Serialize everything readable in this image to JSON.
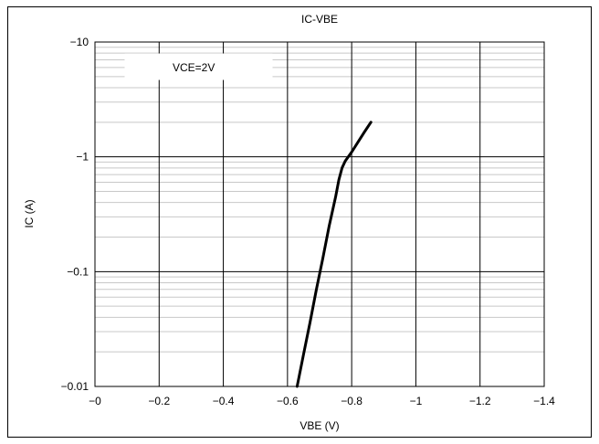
{
  "chart_data": {
    "type": "line",
    "title": "IC-VBE",
    "xlabel": "VBE (V)",
    "ylabel": "IC (A)",
    "xlim": [
      0,
      -1.4
    ],
    "ylim": [
      -0.01,
      -10
    ],
    "yscale": "log",
    "grid": true,
    "x_ticks": [
      "−0",
      "−0.2",
      "−0.4",
      "−0.6",
      "−0.8",
      "−1",
      "−1.2",
      "−1.4"
    ],
    "y_ticks": [
      "−0.01",
      "−0.1",
      "−1",
      "−10"
    ],
    "legend": {
      "text": "VCE=2V",
      "placement": "top-left"
    },
    "series": [
      {
        "x": [
          -0.63,
          -0.65,
          -0.67,
          -0.69,
          -0.71,
          -0.73,
          -0.75,
          -0.76,
          -0.77,
          -0.78,
          -0.8,
          -0.82,
          -0.84,
          -0.86
        ],
        "y": [
          -0.01,
          -0.019,
          -0.036,
          -0.07,
          -0.13,
          -0.25,
          -0.45,
          -0.63,
          -0.8,
          -0.92,
          -1.1,
          -1.35,
          -1.65,
          -2.0
        ],
        "color": "#000000"
      }
    ]
  }
}
